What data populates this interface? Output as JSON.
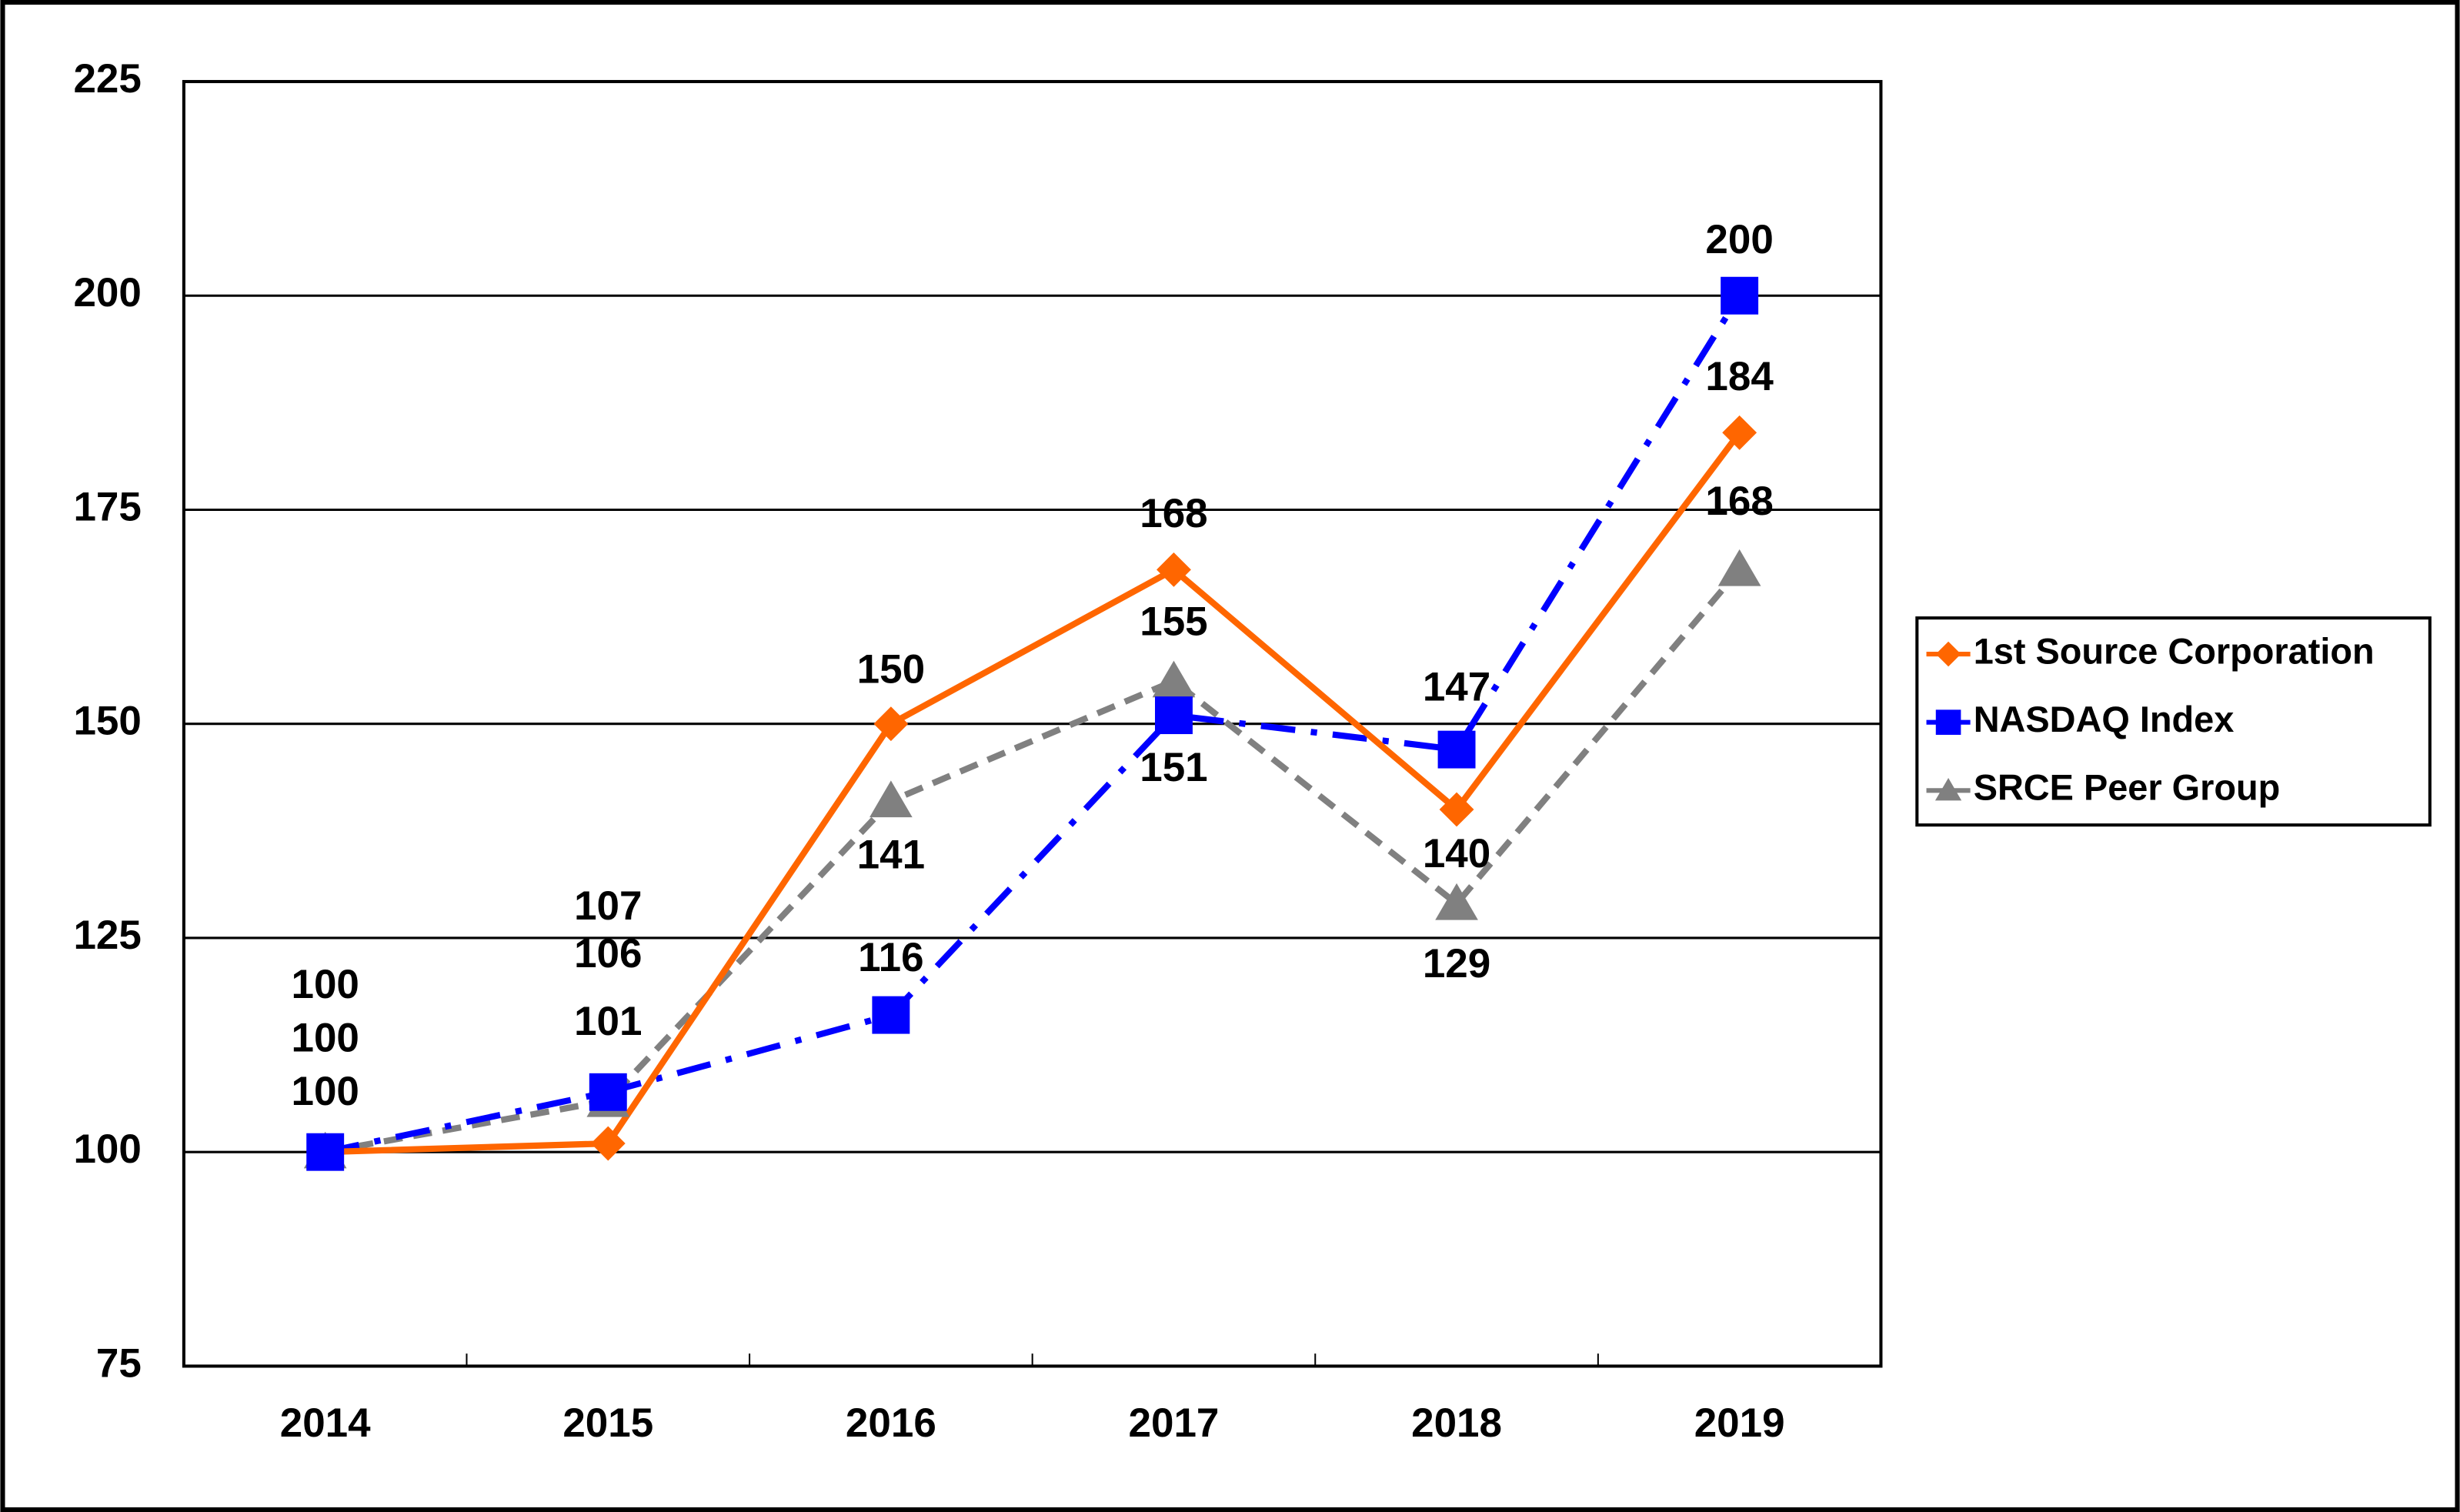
{
  "chart_data": {
    "type": "line",
    "categories": [
      "2014",
      "2015",
      "2016",
      "2017",
      "2018",
      "2019"
    ],
    "series": [
      {
        "name": "1st Source Corporation",
        "color": "#ff6600",
        "marker": "diamond",
        "linestyle": "solid",
        "values": [
          100,
          101,
          150,
          168,
          140,
          184
        ]
      },
      {
        "name": "NASDAQ Index",
        "color": "#0000ff",
        "marker": "square",
        "linestyle": "dashdot",
        "values": [
          100,
          107,
          116,
          151,
          147,
          200
        ]
      },
      {
        "name": "SRCE Peer Group",
        "color": "#808080",
        "marker": "triangle",
        "linestyle": "dashed",
        "values": [
          100,
          106,
          141,
          155,
          129,
          168
        ]
      }
    ],
    "ylim": [
      75,
      225
    ],
    "yticks": [
      75,
      100,
      125,
      150,
      175,
      200,
      225
    ],
    "grid": true,
    "legend": "right"
  }
}
